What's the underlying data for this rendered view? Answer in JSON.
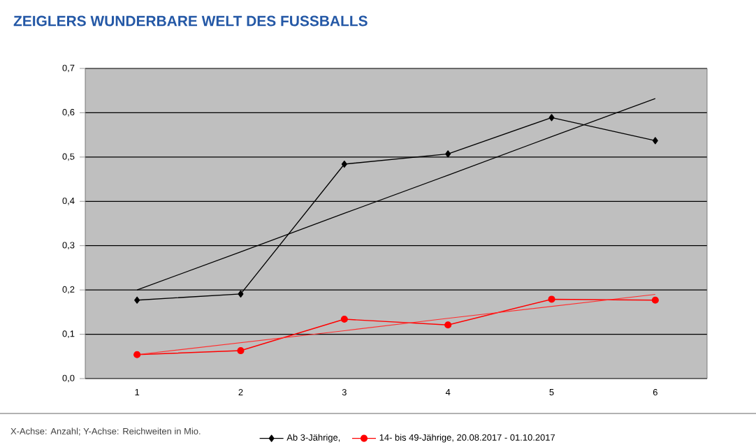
{
  "chart_data": {
    "type": "line",
    "title": "ZEIGLERS WUNDERBARE WELT DES FUSSBALLS",
    "categories": [
      "1",
      "2",
      "3",
      "4",
      "5",
      "6"
    ],
    "series": [
      {
        "name": "Ab 3-Jährige,",
        "color": "#000000",
        "marker": "diamond",
        "values": [
          0.177,
          0.191,
          0.484,
          0.507,
          0.589,
          0.537
        ]
      },
      {
        "name": "14- bis 49-Jährige, 20.08.2017 - 01.10.2017",
        "color": "#ff0000",
        "marker": "circle",
        "values": [
          0.054,
          0.063,
          0.134,
          0.121,
          0.179,
          0.177
        ]
      },
      {
        "color": "#000000",
        "marker": "none",
        "values": [
          0.2,
          0.286,
          0.373,
          0.459,
          0.546,
          0.632
        ]
      },
      {
        "color": "#ff3030",
        "marker": "none",
        "values": [
          0.054,
          0.081,
          0.108,
          0.136,
          0.163,
          0.19
        ]
      }
    ],
    "ylim": [
      0,
      0.7
    ],
    "yticks": [
      {
        "value": 0,
        "label": "0,0"
      },
      {
        "value": 0.1,
        "label": "0,1"
      },
      {
        "value": 0.2,
        "label": "0,2"
      },
      {
        "value": 0.3,
        "label": "0,3"
      },
      {
        "value": 0.4,
        "label": "0,4"
      },
      {
        "value": 0.5,
        "label": "0,5"
      },
      {
        "value": 0.6,
        "label": "0,6"
      },
      {
        "value": 0.7,
        "label": "0,7"
      }
    ],
    "grid": "y",
    "legend": "bottom",
    "annotations": [
      "X-Achse: Anzahl; Y-Achse: Reichweiten in Mio."
    ]
  }
}
